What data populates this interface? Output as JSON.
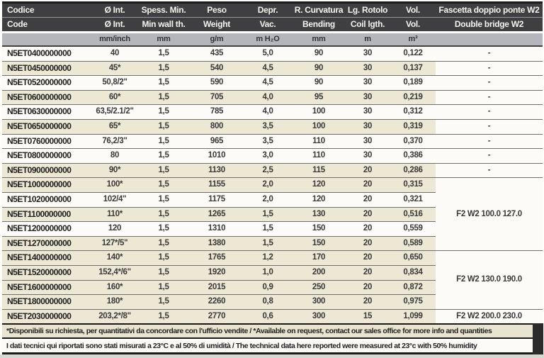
{
  "colors": {
    "header_bg": "#3f3f42",
    "header_text": "#f4f3ef",
    "units_bg": "#b5b5bd",
    "stripe_bg": "#ece8d4",
    "row_bg": "#fcfbf7",
    "separator": "#6f6f6f",
    "frame_black": "#1b1b1b",
    "footnote_bg": "#e9e4cf"
  },
  "table": {
    "columns": [
      {
        "id": "code",
        "label_it": "Codice",
        "label_en": "Code",
        "unit": ""
      },
      {
        "id": "diameter",
        "label_it": "Ø Int.",
        "label_en": "Ø Int.",
        "unit": "mm/inch"
      },
      {
        "id": "wall",
        "label_it": "Spess. Min.",
        "label_en": "Min wall th.",
        "unit": "mm"
      },
      {
        "id": "weight",
        "label_it": "Peso",
        "label_en": "Weight",
        "unit": "g/m"
      },
      {
        "id": "vac",
        "label_it": "Depr.",
        "label_en": "Vac.",
        "unit": "m H₂O"
      },
      {
        "id": "bending",
        "label_it": "R. Curvatura",
        "label_en": "Bending",
        "unit": "mm"
      },
      {
        "id": "coil",
        "label_it": "Lg. Rotolo",
        "label_en": "Coil lgth.",
        "unit": "m"
      },
      {
        "id": "vol",
        "label_it": "Vol.",
        "label_en": "Vol.",
        "unit": "m³"
      },
      {
        "id": "bridge",
        "label_it": "Fascetta doppio ponte W2",
        "label_en": "Double bridge W2",
        "unit": ""
      }
    ],
    "rows": [
      {
        "code": "N5ET0400000000",
        "diameter": "40",
        "wall": "1,5",
        "weight": "435",
        "vac": "5,0",
        "bending": "90",
        "coil": "30",
        "vol": "0,122",
        "bridge": "-",
        "bridge_span": 1,
        "highlight": false
      },
      {
        "code": "N5ET0450000000",
        "diameter": "45*",
        "wall": "1,5",
        "weight": "540",
        "vac": "4,5",
        "bending": "90",
        "coil": "30",
        "vol": "0,137",
        "bridge": "-",
        "bridge_span": 1,
        "highlight": true
      },
      {
        "code": "N5ET0520000000",
        "diameter": "50,8/2\"",
        "wall": "1,5",
        "weight": "590",
        "vac": "4,5",
        "bending": "90",
        "coil": "30",
        "vol": "0,189",
        "bridge": "-",
        "bridge_span": 1,
        "highlight": false
      },
      {
        "code": "N5ET0600000000",
        "diameter": "60*",
        "wall": "1,5",
        "weight": "705",
        "vac": "4,0",
        "bending": "95",
        "coil": "30",
        "vol": "0,219",
        "bridge": "-",
        "bridge_span": 1,
        "highlight": true
      },
      {
        "code": "N5ET0630000000",
        "diameter": "63,5/2.1/2\"",
        "wall": "1,5",
        "weight": "785",
        "vac": "4,0",
        "bending": "100",
        "coil": "30",
        "vol": "0,312",
        "bridge": "-",
        "bridge_span": 1,
        "highlight": false
      },
      {
        "code": "N5ET0650000000",
        "diameter": "65*",
        "wall": "1,5",
        "weight": "800",
        "vac": "3,5",
        "bending": "100",
        "coil": "30",
        "vol": "0,319",
        "bridge": "-",
        "bridge_span": 1,
        "highlight": true
      },
      {
        "code": "N5ET0760000000",
        "diameter": "76,2/3\"",
        "wall": "1,5",
        "weight": "965",
        "vac": "3,5",
        "bending": "110",
        "coil": "30",
        "vol": "0,370",
        "bridge": "-",
        "bridge_span": 1,
        "highlight": false
      },
      {
        "code": "N5ET0800000000",
        "diameter": "80",
        "wall": "1,5",
        "weight": "1010",
        "vac": "3,0",
        "bending": "110",
        "coil": "30",
        "vol": "0,386",
        "bridge": "-",
        "bridge_span": 1,
        "highlight": false
      },
      {
        "code": "N5ET0900000000",
        "diameter": "90*",
        "wall": "1,5",
        "weight": "1130",
        "vac": "2,5",
        "bending": "115",
        "coil": "20",
        "vol": "0,286",
        "bridge": "-",
        "bridge_span": 1,
        "highlight": true
      },
      {
        "code": "N5ET1000000000",
        "diameter": "100*",
        "wall": "1,5",
        "weight": "1155",
        "vac": "2,0",
        "bending": "120",
        "coil": "20",
        "vol": "0,315",
        "bridge": "F2 W2 100.0 127.0",
        "bridge_span": 5,
        "highlight": true
      },
      {
        "code": "N5ET1020000000",
        "diameter": "102/4\"",
        "wall": "1,5",
        "weight": "1175",
        "vac": "2,0",
        "bending": "120",
        "coil": "20",
        "vol": "0,321",
        "bridge": null,
        "bridge_span": 0,
        "highlight": false
      },
      {
        "code": "N5ET1100000000",
        "diameter": "110*",
        "wall": "1,5",
        "weight": "1265",
        "vac": "1,5",
        "bending": "130",
        "coil": "20",
        "vol": "0,516",
        "bridge": null,
        "bridge_span": 0,
        "highlight": true
      },
      {
        "code": "N5ET1200000000",
        "diameter": "120",
        "wall": "1,5",
        "weight": "1310",
        "vac": "1,5",
        "bending": "150",
        "coil": "20",
        "vol": "0,559",
        "bridge": null,
        "bridge_span": 0,
        "highlight": false
      },
      {
        "code": "N5ET1270000000",
        "diameter": "127*/5\"",
        "wall": "1,5",
        "weight": "1380",
        "vac": "1,5",
        "bending": "150",
        "coil": "20",
        "vol": "0,589",
        "bridge": null,
        "bridge_span": 0,
        "highlight": true
      },
      {
        "code": "N5ET1400000000",
        "diameter": "140*",
        "wall": "1,5",
        "weight": "1765",
        "vac": "1,2",
        "bending": "170",
        "coil": "20",
        "vol": "0,650",
        "bridge": "F2 W2 130.0 190.0",
        "bridge_span": 4,
        "highlight": true
      },
      {
        "code": "N5ET1520000000",
        "diameter": "152,4*/6\"",
        "wall": "1,5",
        "weight": "1920",
        "vac": "1,0",
        "bending": "200",
        "coil": "20",
        "vol": "0,834",
        "bridge": null,
        "bridge_span": 0,
        "highlight": true
      },
      {
        "code": "N5ET1600000000",
        "diameter": "160*",
        "wall": "1,5",
        "weight": "2015",
        "vac": "0,9",
        "bending": "250",
        "coil": "20",
        "vol": "0,872",
        "bridge": null,
        "bridge_span": 0,
        "highlight": true
      },
      {
        "code": "N5ET1800000000",
        "diameter": "180*",
        "wall": "1,5",
        "weight": "2260",
        "vac": "0,8",
        "bending": "300",
        "coil": "20",
        "vol": "0,975",
        "bridge": null,
        "bridge_span": 0,
        "highlight": true
      },
      {
        "code": "N5ET2030000000",
        "diameter": "203,2*/8\"",
        "wall": "1,5",
        "weight": "2770",
        "vac": "0,6",
        "bending": "300",
        "coil": "15",
        "vol": "1,099",
        "bridge": "F2 W2 200.0 230.0",
        "bridge_span": 1,
        "highlight": true
      }
    ]
  },
  "footnotes": {
    "availability": "*Disponibili su richiesta, per quantitativi da concordare con l'ufficio vendite / *Available on request, contact our sales office for more info and quantities",
    "conditions": "I dati tecnici qui riportati sono stati misurati a 23°C e al 50% di umidità / The technical data here reported were measured at 23°c with 50% humidity"
  }
}
